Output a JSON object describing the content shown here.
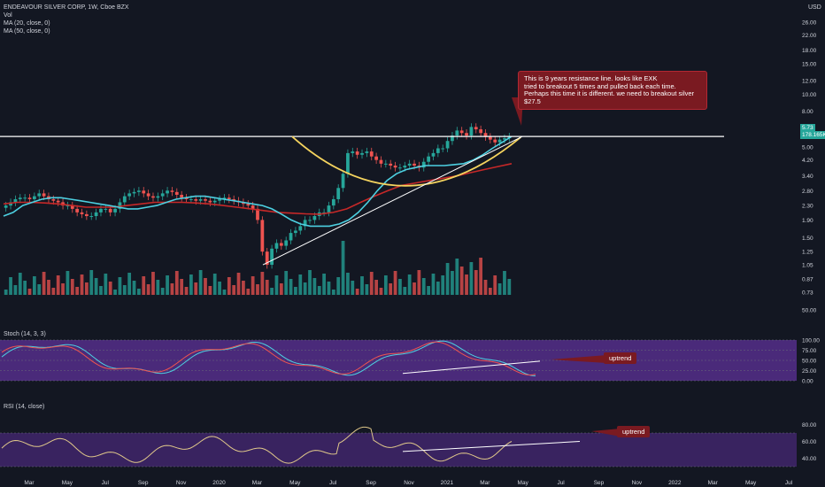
{
  "header": {
    "title": "ENDEAVOUR SILVER CORP, 1W, Cboe BZX",
    "currency": "USD",
    "indicators": [
      "Vol",
      "MA (20, close, 0)",
      "MA (50, close, 0)"
    ]
  },
  "price_axis": [
    "26.00",
    "22.00",
    "18.00",
    "15.00",
    "12.00",
    "10.00",
    "8.00",
    "6.50",
    "5.00",
    "4.20",
    "3.40",
    "2.80",
    "2.30",
    "1.90",
    "1.50",
    "1.25",
    "1.05",
    "0.87",
    "0.73",
    "50.00"
  ],
  "last_price": {
    "value": "5.73",
    "volume": "178.165K"
  },
  "stoch": {
    "label": "Stoch (14, 3, 3)",
    "levels": [
      "100.00",
      "75.00",
      "50.00",
      "25.00",
      "0.00"
    ]
  },
  "rsi": {
    "label": "RSI (14, close)",
    "levels": [
      "80.00",
      "60.00",
      "40.00"
    ]
  },
  "time_axis": [
    "Mar",
    "May",
    "Jul",
    "Sep",
    "Nov",
    "2020",
    "Mar",
    "May",
    "Jul",
    "Sep",
    "Nov",
    "2021",
    "Mar",
    "May",
    "Jul",
    "Sep",
    "Nov",
    "2022",
    "Mar",
    "May",
    "Jul"
  ],
  "annotations": {
    "resistance_lines": [
      "This is 9 years resistance line. looks like EXK",
      "tried to breakout 5 times and pulled back each time.",
      "Perhaps this time it is different. we need to breakout silver $27.5"
    ],
    "uptrend_stoch": "uptrend",
    "uptrend_rsi": "uptrend"
  },
  "colors": {
    "background": "#131722",
    "up": "#26a69a",
    "down": "#ef5350",
    "ma20": "#4dd0e1",
    "ma50": "#c62828",
    "panel": "#4a2a7a",
    "annotation": "#7a1a21"
  },
  "chart_data": {
    "type": "candlestick",
    "title": "ENDEAVOUR SILVER CORP, 1W, Cboe BZX",
    "scale": "log",
    "ylim": [
      0.65,
      26
    ],
    "x_range": [
      "2019-02",
      "2022-07"
    ],
    "close_weekly": [
      2.3,
      2.4,
      2.5,
      2.55,
      2.55,
      2.5,
      2.6,
      2.7,
      2.6,
      2.5,
      2.45,
      2.4,
      2.3,
      2.3,
      2.2,
      2.1,
      2.05,
      2.0,
      2.0,
      2.1,
      2.2,
      2.2,
      2.1,
      2.2,
      2.4,
      2.6,
      2.7,
      2.75,
      2.8,
      2.7,
      2.6,
      2.55,
      2.6,
      2.7,
      2.8,
      2.75,
      2.65,
      2.55,
      2.5,
      2.5,
      2.45,
      2.5,
      2.45,
      2.4,
      2.45,
      2.5,
      2.55,
      2.5,
      2.45,
      2.4,
      2.35,
      2.3,
      2.2,
      1.9,
      1.25,
      1.05,
      1.3,
      1.4,
      1.35,
      1.45,
      1.6,
      1.65,
      1.75,
      1.9,
      1.9,
      2.0,
      2.1,
      2.1,
      2.3,
      2.5,
      2.9,
      3.5,
      4.6,
      4.7,
      4.5,
      4.6,
      4.7,
      4.4,
      4.2,
      4.0,
      4.0,
      3.9,
      3.8,
      3.8,
      3.9,
      4.0,
      3.9,
      3.8,
      4.1,
      4.4,
      4.6,
      4.9,
      4.9,
      5.4,
      5.8,
      6.2,
      6.0,
      5.8,
      6.5,
      6.3,
      6.0,
      5.7,
      5.5,
      5.3,
      5.5,
      5.6,
      5.73
    ],
    "ma20_weekly": [
      2.0,
      2.1,
      2.3,
      2.4,
      2.5,
      2.55,
      2.55,
      2.5,
      2.45,
      2.4,
      2.35,
      2.3,
      2.25,
      2.2,
      2.2,
      2.25,
      2.3,
      2.4,
      2.5,
      2.55,
      2.6,
      2.6,
      2.55,
      2.5,
      2.45,
      2.4,
      2.35,
      2.3,
      2.2,
      2.05,
      1.9,
      1.8,
      1.75,
      1.75,
      1.75,
      1.8,
      1.9,
      2.1,
      2.4,
      2.8,
      3.2,
      3.5,
      3.7,
      3.8,
      3.9,
      3.9,
      3.9,
      3.95,
      4.0,
      4.2,
      4.5,
      4.9,
      5.3,
      5.73
    ],
    "ma50_weekly": [
      2.35,
      2.4,
      2.4,
      2.38,
      2.35,
      2.3,
      2.25,
      2.25,
      2.25,
      2.3,
      2.35,
      2.4,
      2.4,
      2.4,
      2.38,
      2.35,
      2.3,
      2.25,
      2.2,
      2.15,
      2.1,
      2.08,
      2.06,
      2.05,
      2.1,
      2.2,
      2.4,
      2.6,
      2.8,
      3.0,
      3.1,
      3.2,
      3.3,
      3.4,
      3.55,
      3.7,
      3.85,
      4.0
    ],
    "resistance": 5.73
  }
}
